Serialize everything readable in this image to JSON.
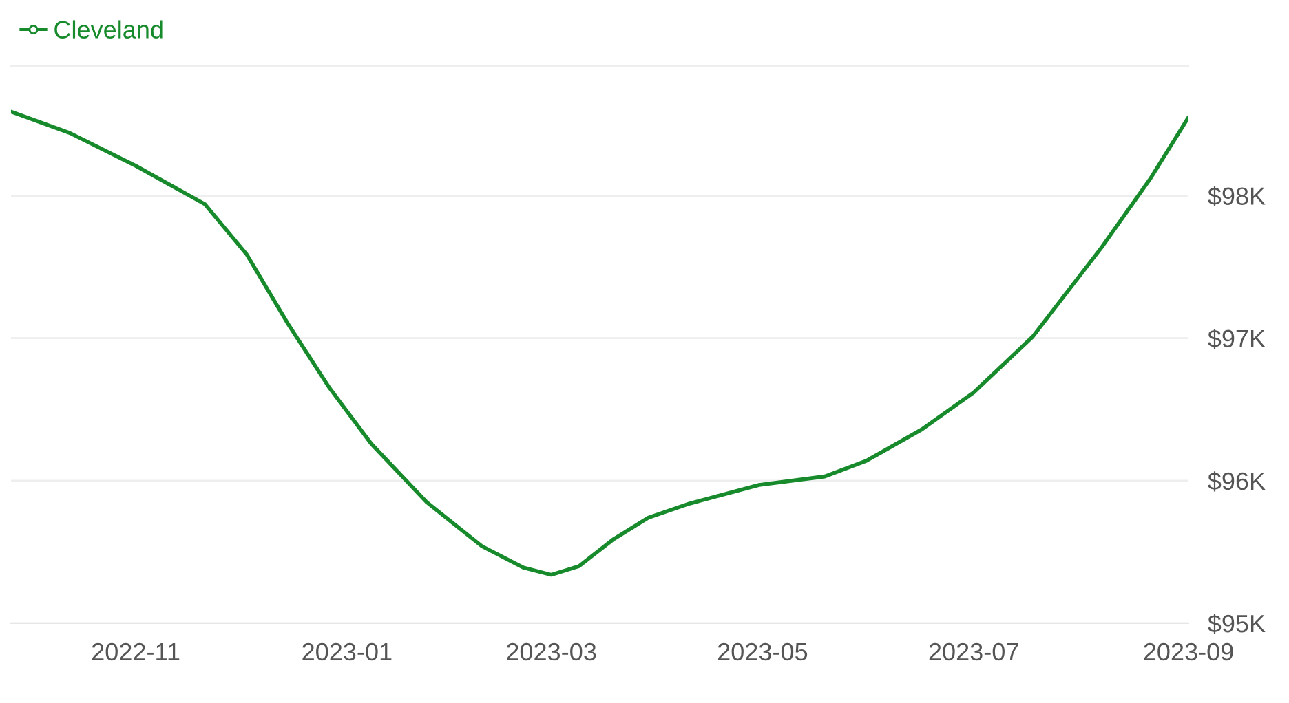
{
  "chart_data": {
    "type": "line",
    "x": [
      "2022-09-26",
      "2022-10-13",
      "2022-11-01",
      "2022-11-21",
      "2022-12-03",
      "2022-12-15",
      "2022-12-27",
      "2023-01-08",
      "2023-01-24",
      "2023-02-09",
      "2023-02-21",
      "2023-03-01",
      "2023-03-09",
      "2023-03-19",
      "2023-03-29",
      "2023-04-10",
      "2023-04-30",
      "2023-05-19",
      "2023-05-31",
      "2023-06-16",
      "2023-07-01",
      "2023-07-18",
      "2023-08-07",
      "2023-08-21",
      "2023-09-01"
    ],
    "series": [
      {
        "name": "Cleveland",
        "color": "#178a2c",
        "values": [
          98.59,
          98.44,
          98.21,
          97.94,
          97.59,
          97.1,
          96.65,
          96.26,
          95.85,
          95.54,
          95.39,
          95.34,
          95.4,
          95.59,
          95.74,
          95.84,
          95.97,
          96.03,
          96.14,
          96.36,
          96.62,
          97.01,
          97.64,
          98.12,
          98.55
        ]
      }
    ],
    "xlim": [
      "2022-09-26",
      "2023-09-01"
    ],
    "xticks": [
      {
        "value": "2022-11-01",
        "label": "2022-11"
      },
      {
        "value": "2023-01-01",
        "label": "2023-01"
      },
      {
        "value": "2023-03-01",
        "label": "2023-03"
      },
      {
        "value": "2023-05-01",
        "label": "2023-05"
      },
      {
        "value": "2023-07-01",
        "label": "2023-07"
      },
      {
        "value": "2023-09-01",
        "label": "2023-09"
      }
    ],
    "ylim": [
      95,
      98.91
    ],
    "yticks": [
      {
        "value": 95,
        "label": "$95K"
      },
      {
        "value": 96,
        "label": "$96K"
      },
      {
        "value": 97,
        "label": "$97K"
      },
      {
        "value": 98,
        "label": "$98K"
      }
    ],
    "grid": "y",
    "legend": "top left"
  }
}
